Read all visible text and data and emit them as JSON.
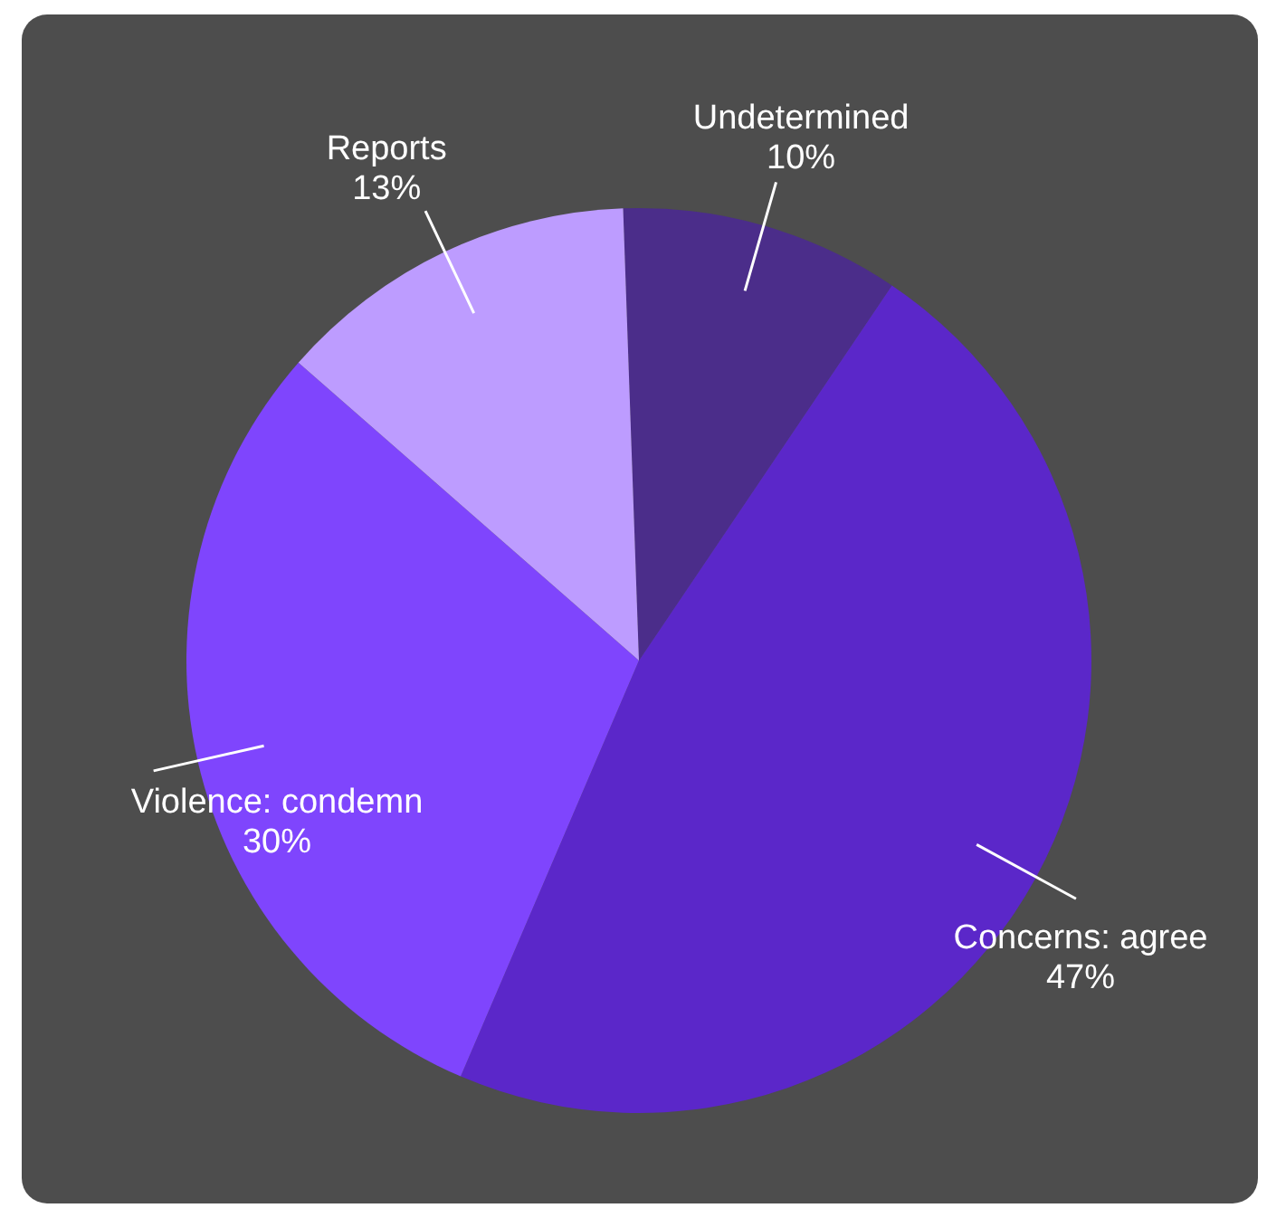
{
  "chart_data": {
    "type": "pie",
    "categories": [
      "Undetermined",
      "Concerns: agree",
      "Violence: condemn",
      "Reports"
    ],
    "values": [
      10,
      47,
      30,
      13
    ],
    "value_labels": [
      "10%",
      "47%",
      "30%",
      "13%"
    ],
    "colors": [
      "#4b2d8a",
      "#5b27c9",
      "#7f45fd",
      "#bd9cff"
    ]
  }
}
